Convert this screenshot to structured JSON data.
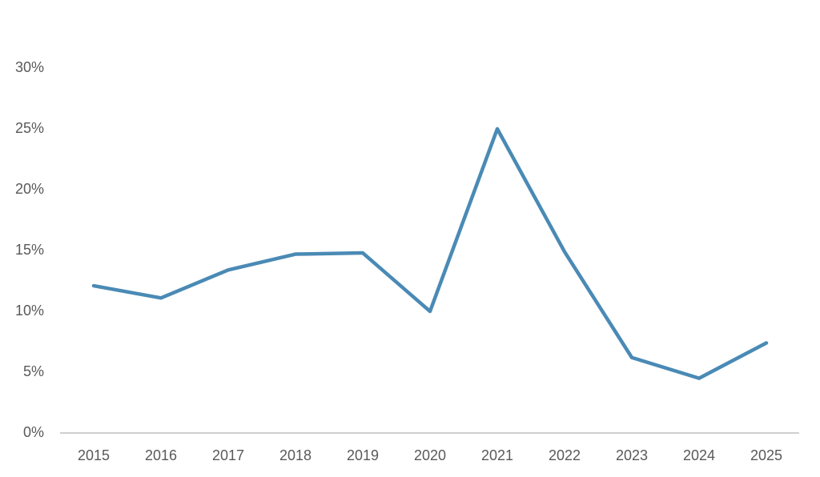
{
  "chart_data": {
    "type": "line",
    "categories": [
      "2015",
      "2016",
      "2017",
      "2018",
      "2019",
      "2020",
      "2021",
      "2022",
      "2023",
      "2024",
      "2025"
    ],
    "series": [
      {
        "color": "#4a8ab5",
        "values": [
          12.1,
          11.1,
          13.4,
          14.7,
          14.8,
          10.0,
          25.0,
          14.9,
          6.2,
          4.5,
          7.4
        ]
      }
    ],
    "ylim": [
      0,
      30
    ],
    "yticks": [
      {
        "value": 0,
        "label": "0%"
      },
      {
        "value": 5,
        "label": "5%"
      },
      {
        "value": 10,
        "label": "10%"
      },
      {
        "value": 15,
        "label": "15%"
      },
      {
        "value": 20,
        "label": "20%"
      },
      {
        "value": 25,
        "label": "25%"
      },
      {
        "value": 30,
        "label": "30%"
      }
    ],
    "grid": false
  }
}
